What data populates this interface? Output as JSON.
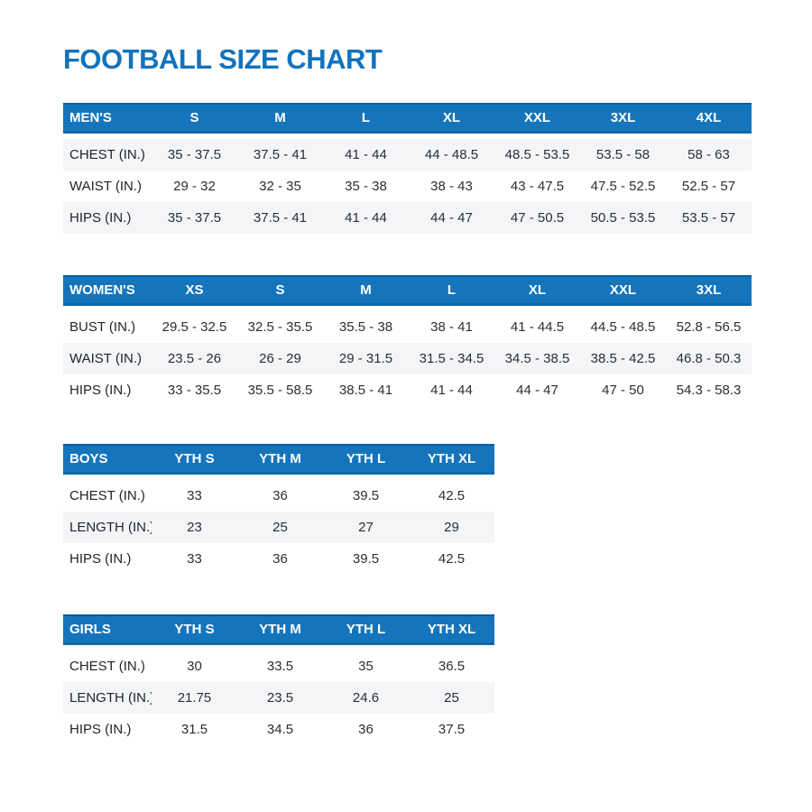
{
  "page": {
    "title": "FOOTBALL SIZE CHART"
  },
  "colors": {
    "title_blue": "#1173bd",
    "header_bg": "#1575bc",
    "header_text": "#ffffff",
    "shaded_row_bg": "#f4f5f6",
    "body_text": "#2b2f33"
  },
  "tables": [
    {
      "id": "mens",
      "label": "MEN'S",
      "columns": [
        "S",
        "M",
        "L",
        "XL",
        "XXL",
        "3XL",
        "4XL"
      ],
      "shaded_rows": [
        0,
        2
      ],
      "rows": [
        {
          "label": "CHEST (IN.)",
          "values": [
            "35 - 37.5",
            "37.5 - 41",
            "41 - 44",
            "44 - 48.5",
            "48.5 - 53.5",
            "53.5 - 58",
            "58 - 63"
          ]
        },
        {
          "label": "WAIST (IN.)",
          "values": [
            "29 - 32",
            "32 - 35",
            "35 - 38",
            "38 - 43",
            "43 - 47.5",
            "47.5 - 52.5",
            "52.5 - 57"
          ]
        },
        {
          "label": "HIPS (IN.)",
          "values": [
            "35 - 37.5",
            "37.5 - 41",
            "41 - 44",
            "44 - 47",
            "47 - 50.5",
            "50.5 - 53.5",
            "53.5 - 57"
          ]
        }
      ]
    },
    {
      "id": "womens",
      "label": "WOMEN'S",
      "columns": [
        "XS",
        "S",
        "M",
        "L",
        "XL",
        "XXL",
        "3XL"
      ],
      "shaded_rows": [
        1
      ],
      "rows": [
        {
          "label": "BUST (IN.)",
          "values": [
            "29.5 - 32.5",
            "32.5 - 35.5",
            "35.5 - 38",
            "38 - 41",
            "41 - 44.5",
            "44.5 - 48.5",
            "52.8 - 56.5"
          ]
        },
        {
          "label": "WAIST (IN.)",
          "values": [
            "23.5 - 26",
            "26 - 29",
            "29 - 31.5",
            "31.5 - 34.5",
            "34.5 - 38.5",
            "38.5 - 42.5",
            "46.8 - 50.3"
          ]
        },
        {
          "label": "HIPS (IN.)",
          "values": [
            "33 - 35.5",
            "35.5 - 58.5",
            "38.5 - 41",
            "41 - 44",
            "44 - 47",
            "47 - 50",
            "54.3 - 58.3"
          ]
        }
      ]
    },
    {
      "id": "boys",
      "label": "BOYS",
      "columns": [
        "YTH S",
        "YTH M",
        "YTH L",
        "YTH XL"
      ],
      "shaded_rows": [
        1
      ],
      "rows": [
        {
          "label": "CHEST (IN.)",
          "values": [
            "33",
            "36",
            "39.5",
            "42.5"
          ]
        },
        {
          "label": "LENGTH (IN.)",
          "values": [
            "23",
            "25",
            "27",
            "29"
          ]
        },
        {
          "label": "HIPS (IN.)",
          "values": [
            "33",
            "36",
            "39.5",
            "42.5"
          ]
        }
      ]
    },
    {
      "id": "girls",
      "label": "GIRLS",
      "columns": [
        "YTH S",
        "YTH M",
        "YTH L",
        "YTH XL"
      ],
      "shaded_rows": [
        1
      ],
      "rows": [
        {
          "label": "CHEST (IN.)",
          "values": [
            "30",
            "33.5",
            "35",
            "36.5"
          ]
        },
        {
          "label": "LENGTH (IN.)",
          "values": [
            "21.75",
            "23.5",
            "24.6",
            "25"
          ]
        },
        {
          "label": "HIPS (IN.)",
          "values": [
            "31.5",
            "34.5",
            "36",
            "37.5"
          ]
        }
      ]
    }
  ]
}
